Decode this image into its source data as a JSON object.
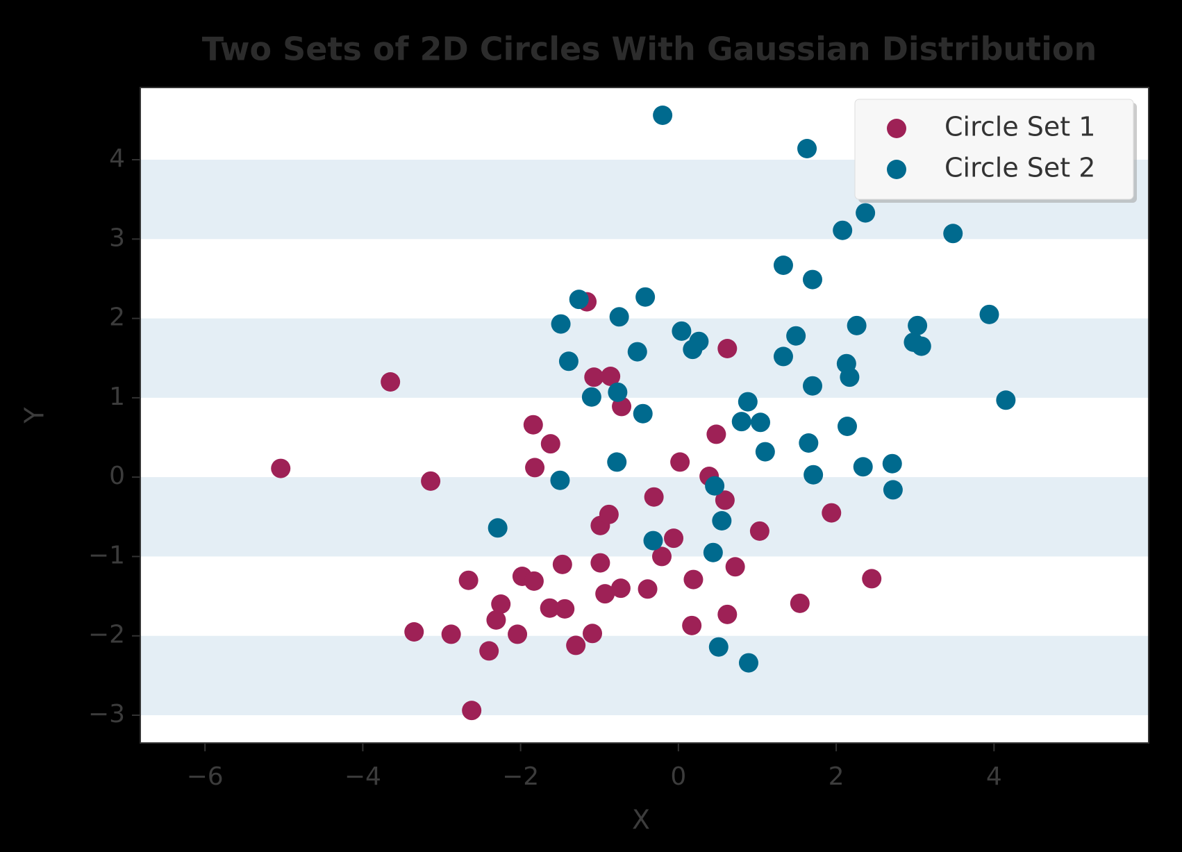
{
  "chart_data": {
    "type": "scatter",
    "title": "Two Sets of 2D Circles With Gaussian Distribution",
    "x_label": "X",
    "y_label": "Y",
    "xlim": [
      -6.82,
      5.96
    ],
    "ylim": [
      -3.35,
      4.91
    ],
    "xticks": [
      {
        "value": -6,
        "label": "−6"
      },
      {
        "value": -4,
        "label": "−4"
      },
      {
        "value": -2,
        "label": "−2"
      },
      0,
      2,
      4
    ],
    "yticks": [
      {
        "value": -3,
        "label": "−3"
      },
      {
        "value": -2,
        "label": "−2"
      },
      {
        "value": -1,
        "label": "−1"
      },
      0,
      1,
      2,
      3,
      4
    ],
    "banded_background": true,
    "band_color": "#e4eef5",
    "legend_location": "upper right",
    "series": [
      {
        "name": "Circle Set 1",
        "color": "#9e2156",
        "x": [
          -5.04,
          -3.65,
          -3.14,
          -3.35,
          -2.88,
          -2.66,
          -2.62,
          -2.4,
          -2.31,
          -2.25,
          -2.04,
          -1.98,
          -1.83,
          -1.84,
          -1.82,
          -1.62,
          -1.47,
          -1.63,
          -1.44,
          -1.3,
          -1.09,
          -1.16,
          -1.07,
          -0.86,
          -0.72,
          -0.99,
          -0.88,
          -0.99,
          -0.93,
          -0.73,
          -0.39,
          -0.31,
          -0.21,
          -0.06,
          0.02,
          0.19,
          0.17,
          0.39,
          0.48,
          0.59,
          0.62,
          0.72,
          0.62,
          1.03,
          1.54,
          1.94,
          2.45
        ],
        "values": [
          0.11,
          1.2,
          -0.05,
          -1.95,
          -1.98,
          -1.3,
          -2.94,
          -2.19,
          -1.8,
          -1.6,
          -1.98,
          -1.25,
          -1.31,
          0.66,
          0.12,
          0.42,
          -1.1,
          -1.65,
          -1.66,
          -2.12,
          -1.97,
          2.21,
          1.26,
          1.27,
          0.89,
          -0.61,
          -0.47,
          -1.08,
          -1.47,
          -1.4,
          -1.41,
          -0.25,
          -1.0,
          -0.77,
          0.19,
          -1.29,
          -1.87,
          0.01,
          0.54,
          -0.29,
          1.62,
          -1.13,
          -1.73,
          -0.68,
          -1.59,
          -0.45,
          -1.28
        ]
      },
      {
        "name": "Circle Set 2",
        "color": "#006a8e",
        "x": [
          -0.2,
          1.63,
          2.37,
          2.08,
          3.48,
          1.33,
          1.7,
          -0.42,
          -1.26,
          -1.49,
          -0.75,
          0.04,
          0.26,
          0.18,
          -0.52,
          -1.39,
          1.49,
          1.33,
          2.26,
          2.13,
          2.17,
          1.7,
          3.03,
          2.98,
          3.08,
          3.94,
          4.15,
          -1.1,
          -0.77,
          -0.45,
          0.88,
          0.8,
          1.04,
          1.1,
          1.65,
          2.14,
          1.71,
          2.34,
          2.71,
          2.72,
          -0.78,
          -1.5,
          -2.29,
          0.46,
          0.55,
          -0.32,
          0.44,
          0.51,
          0.89
        ],
        "values": [
          4.56,
          4.14,
          3.33,
          3.11,
          3.07,
          2.67,
          2.49,
          2.27,
          2.24,
          1.93,
          2.02,
          1.84,
          1.71,
          1.61,
          1.58,
          1.46,
          1.78,
          1.52,
          1.91,
          1.43,
          1.26,
          1.15,
          1.91,
          1.7,
          1.65,
          2.05,
          0.97,
          1.01,
          1.07,
          0.8,
          0.95,
          0.7,
          0.69,
          0.32,
          0.43,
          0.64,
          0.03,
          0.13,
          0.17,
          -0.16,
          0.19,
          -0.04,
          -0.64,
          -0.11,
          -0.55,
          -0.8,
          -0.95,
          -2.14,
          -2.34
        ]
      }
    ]
  }
}
